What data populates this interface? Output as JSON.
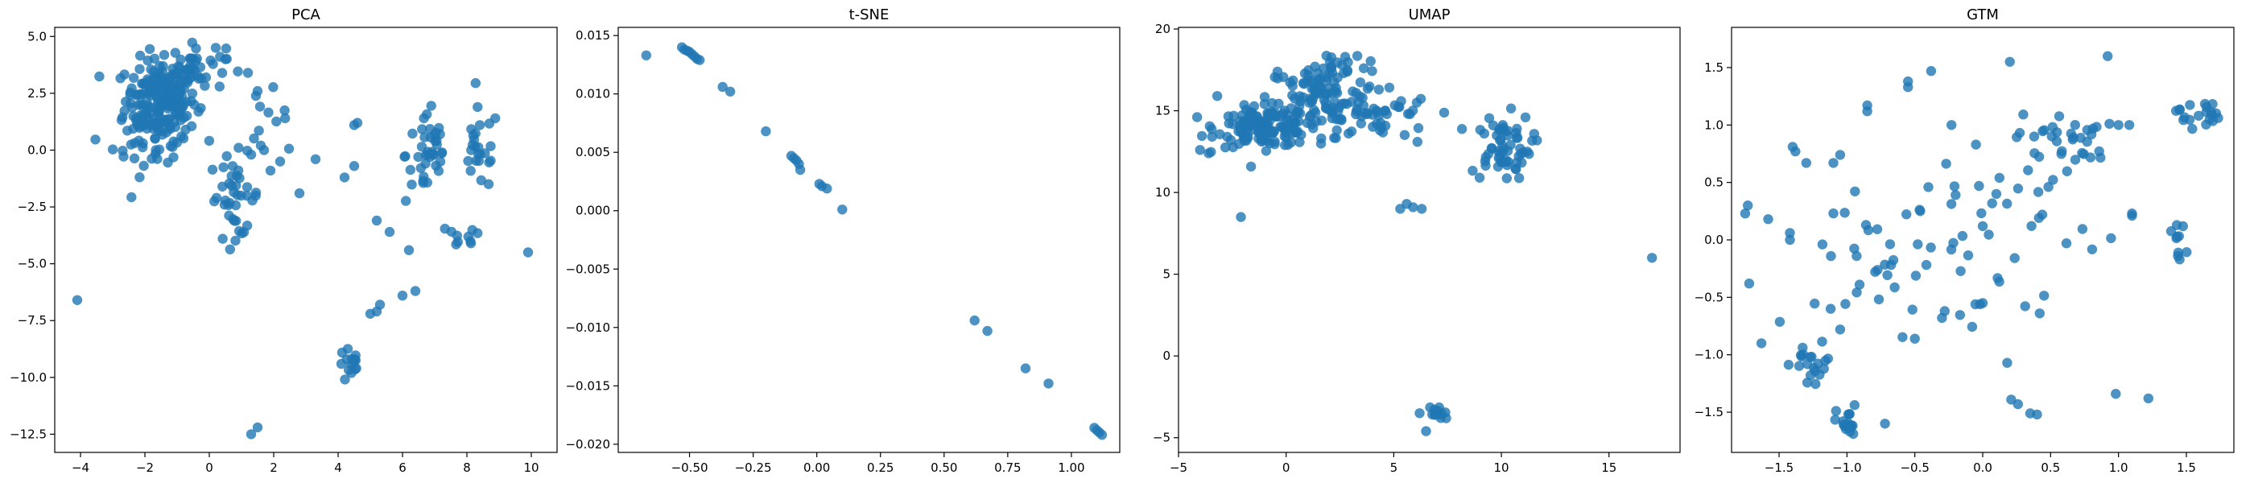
{
  "point_color": "#1f77b4",
  "point_opacity": 0.8,
  "chart_data": [
    {
      "type": "scatter",
      "title": "PCA",
      "xlim": [
        -4.8,
        10.8
      ],
      "ylim": [
        -13.3,
        5.4
      ],
      "xticks": [
        -4,
        -2,
        0,
        2,
        4,
        6,
        8,
        10
      ],
      "xtick_labels": [
        "−4",
        "−2",
        "0",
        "2",
        "4",
        "6",
        "8",
        "10"
      ],
      "yticks": [
        -12.5,
        -10,
        -7.5,
        -5,
        -2.5,
        0,
        2.5,
        5
      ],
      "ytick_labels": [
        "−12.5",
        "−10.0",
        "−7.5",
        "−5.0",
        "−2.5",
        "0.0",
        "2.5",
        "5.0"
      ],
      "clusters": [
        {
          "cx": -1.5,
          "cy": 2.2,
          "sx": 0.55,
          "sy": 0.9,
          "n": 200
        },
        {
          "cx": -0.5,
          "cy": 3.6,
          "sx": 0.5,
          "sy": 0.5,
          "n": 40
        },
        {
          "cx": -1.8,
          "cy": 0.3,
          "sx": 0.6,
          "sy": 0.7,
          "n": 30
        },
        {
          "cx": 0.8,
          "cy": -2.0,
          "sx": 0.4,
          "sy": 0.9,
          "n": 40
        },
        {
          "cx": 1.8,
          "cy": 1.6,
          "sx": 0.3,
          "sy": 0.6,
          "n": 10
        },
        {
          "cx": 6.8,
          "cy": -0.2,
          "sx": 0.35,
          "sy": 1.1,
          "n": 40
        },
        {
          "cx": 8.4,
          "cy": 0.0,
          "sx": 0.3,
          "sy": 0.9,
          "n": 25
        },
        {
          "cx": 7.7,
          "cy": -3.9,
          "sx": 0.4,
          "sy": 0.3,
          "n": 10
        },
        {
          "cx": 4.4,
          "cy": -9.5,
          "sx": 0.2,
          "sy": 0.4,
          "n": 15
        }
      ],
      "points": [
        [
          -4.1,
          -6.6
        ],
        [
          1.3,
          -12.5
        ],
        [
          1.5,
          -12.2
        ],
        [
          4.6,
          1.2
        ],
        [
          4.5,
          1.1
        ],
        [
          4.2,
          -1.2
        ],
        [
          4.5,
          -0.7
        ],
        [
          2.8,
          -1.9
        ],
        [
          3.3,
          -0.4
        ],
        [
          5.2,
          -3.1
        ],
        [
          5.6,
          -3.6
        ],
        [
          6.2,
          -4.4
        ],
        [
          5.0,
          -7.2
        ],
        [
          5.3,
          -6.8
        ],
        [
          5.2,
          -7.1
        ],
        [
          6.0,
          -6.4
        ],
        [
          6.4,
          -6.2
        ],
        [
          9.9,
          -4.5
        ],
        [
          2.2,
          -0.5
        ],
        [
          1.6,
          0.2
        ],
        [
          1.3,
          -0.2
        ],
        [
          1.5,
          2.6
        ],
        [
          1.2,
          3.4
        ],
        [
          0.5,
          4.0
        ],
        [
          0.2,
          4.5
        ],
        [
          1.7,
          0.0
        ],
        [
          1.9,
          -0.9
        ]
      ]
    },
    {
      "type": "scatter",
      "title": "t-SNE",
      "xlim": [
        -0.78,
        1.19
      ],
      "ylim": [
        -0.0207,
        0.0157
      ],
      "xticks": [
        -0.5,
        -0.25,
        0.0,
        0.25,
        0.5,
        0.75,
        1.0
      ],
      "xtick_labels": [
        "−0.50",
        "−0.25",
        "0.00",
        "0.25",
        "0.50",
        "0.75",
        "1.00"
      ],
      "yticks": [
        -0.02,
        -0.015,
        -0.01,
        -0.005,
        0.0,
        0.005,
        0.01,
        0.015
      ],
      "ytick_labels": [
        "−0.020",
        "−0.015",
        "−0.010",
        "−0.005",
        "0.000",
        "0.005",
        "0.010",
        "0.015"
      ],
      "clusters": [],
      "points": [
        [
          -0.67,
          0.0133
        ],
        [
          -0.53,
          0.014
        ],
        [
          -0.52,
          0.0138
        ],
        [
          -0.51,
          0.0137
        ],
        [
          -0.5,
          0.0136
        ],
        [
          -0.49,
          0.0134
        ],
        [
          -0.48,
          0.0132
        ],
        [
          -0.47,
          0.013
        ],
        [
          -0.46,
          0.0129
        ],
        [
          -0.37,
          0.0106
        ],
        [
          -0.34,
          0.0102
        ],
        [
          -0.2,
          0.0068
        ],
        [
          -0.1,
          0.0047
        ],
        [
          -0.09,
          0.0045
        ],
        [
          -0.08,
          0.0043
        ],
        [
          -0.07,
          0.004
        ],
        [
          -0.065,
          0.0035
        ],
        [
          0.01,
          0.0023
        ],
        [
          0.02,
          0.0021
        ],
        [
          0.04,
          0.0019
        ],
        [
          0.1,
          0.0001
        ],
        [
          0.62,
          -0.0094
        ],
        [
          0.67,
          -0.0103
        ],
        [
          0.82,
          -0.0135
        ],
        [
          0.91,
          -0.0148
        ],
        [
          1.09,
          -0.0186
        ],
        [
          1.1,
          -0.0188
        ],
        [
          1.11,
          -0.019
        ],
        [
          1.12,
          -0.0192
        ]
      ]
    },
    {
      "type": "scatter",
      "title": "UMAP",
      "xlim": [
        -5.0,
        18.3
      ],
      "ylim": [
        -5.9,
        20.1
      ],
      "xticks": [
        -5,
        0,
        5,
        10,
        15
      ],
      "xtick_labels": [
        "−5",
        "0",
        "5",
        "10",
        "15"
      ],
      "yticks": [
        -5,
        0,
        5,
        10,
        15,
        20
      ],
      "ytick_labels": [
        "−5",
        "0",
        "5",
        "10",
        "15",
        "20"
      ],
      "clusters": [
        {
          "cx": -1.0,
          "cy": 14.0,
          "sx": 1.1,
          "sy": 0.6,
          "n": 140
        },
        {
          "cx": 1.5,
          "cy": 15.8,
          "sx": 1.2,
          "sy": 1.1,
          "n": 90
        },
        {
          "cx": 2.5,
          "cy": 17.8,
          "sx": 0.7,
          "sy": 0.6,
          "n": 20
        },
        {
          "cx": 4.0,
          "cy": 14.8,
          "sx": 1.4,
          "sy": 0.9,
          "n": 50
        },
        {
          "cx": 10.0,
          "cy": 12.8,
          "sx": 0.7,
          "sy": 1.0,
          "n": 60
        },
        {
          "cx": 7.0,
          "cy": -3.6,
          "sx": 0.25,
          "sy": 0.3,
          "n": 12
        }
      ],
      "points": [
        [
          -4.0,
          12.6
        ],
        [
          -3.6,
          12.4
        ],
        [
          -2.1,
          8.5
        ],
        [
          5.3,
          9.0
        ],
        [
          5.6,
          9.3
        ],
        [
          5.9,
          9.1
        ],
        [
          6.3,
          9.0
        ],
        [
          17.0,
          6.0
        ],
        [
          6.1,
          13.1
        ],
        [
          11.2,
          12.5
        ],
        [
          -3.2,
          15.9
        ],
        [
          6.5,
          -4.6
        ],
        [
          6.2,
          -3.5
        ]
      ]
    },
    {
      "type": "scatter",
      "title": "GTM",
      "xlim": [
        -1.85,
        1.85
      ],
      "ylim": [
        -1.85,
        1.85
      ],
      "xticks": [
        -1.5,
        -1.0,
        -0.5,
        0.0,
        0.5,
        1.0,
        1.5
      ],
      "xtick_labels": [
        "−1.5",
        "−1.0",
        "−0.5",
        "0.0",
        "0.5",
        "1.0",
        "1.5"
      ],
      "yticks": [
        -1.5,
        -1.0,
        -0.5,
        0.0,
        0.5,
        1.0,
        1.5
      ],
      "ytick_labels": [
        "−1.5",
        "−1.0",
        "−0.5",
        "0.0",
        "0.5",
        "1.0",
        "1.5"
      ],
      "clusters": [
        {
          "cx": 0.6,
          "cy": 0.9,
          "sx": 0.18,
          "sy": 0.1,
          "n": 30
        },
        {
          "cx": 1.58,
          "cy": 1.1,
          "sx": 0.08,
          "sy": 0.06,
          "n": 20
        },
        {
          "cx": -1.0,
          "cy": -1.6,
          "sx": 0.04,
          "sy": 0.08,
          "n": 20
        },
        {
          "cx": -1.25,
          "cy": -1.1,
          "sx": 0.08,
          "sy": 0.1,
          "n": 20
        },
        {
          "cx": 1.45,
          "cy": -0.1,
          "sx": 0.03,
          "sy": 0.12,
          "n": 10
        },
        {
          "cx": -0.6,
          "cy": -0.2,
          "sx": 0.4,
          "sy": 0.4,
          "n": 40
        },
        {
          "cx": 0.3,
          "cy": 0.3,
          "sx": 0.3,
          "sy": 0.3,
          "n": 30
        }
      ],
      "points": [
        [
          -1.75,
          0.23
        ],
        [
          -1.72,
          -0.38
        ],
        [
          -1.73,
          0.3
        ],
        [
          -1.58,
          0.18
        ],
        [
          -1.42,
          0.06
        ],
        [
          -1.42,
          0.0
        ],
        [
          -1.63,
          -0.9
        ],
        [
          -1.4,
          0.81
        ],
        [
          -1.38,
          0.77
        ],
        [
          -1.3,
          0.67
        ],
        [
          -1.1,
          0.67
        ],
        [
          -1.05,
          0.74
        ],
        [
          -0.85,
          1.17
        ],
        [
          -0.85,
          1.12
        ],
        [
          -0.55,
          1.38
        ],
        [
          -0.55,
          1.33
        ],
        [
          -0.38,
          1.47
        ],
        [
          -0.23,
          1.0
        ],
        [
          -0.2,
          0.39
        ],
        [
          -0.05,
          0.83
        ],
        [
          0.2,
          1.55
        ],
        [
          0.92,
          1.6
        ],
        [
          1.08,
          1.0
        ],
        [
          1.1,
          0.23
        ],
        [
          1.1,
          0.21
        ],
        [
          0.98,
          -1.34
        ],
        [
          1.22,
          -1.38
        ],
        [
          0.18,
          -1.07
        ],
        [
          0.21,
          -1.39
        ],
        [
          0.26,
          -1.43
        ],
        [
          0.35,
          -1.51
        ],
        [
          0.4,
          -1.52
        ],
        [
          -0.02,
          -0.56
        ],
        [
          0.0,
          -0.55
        ],
        [
          0.42,
          -0.64
        ],
        [
          -0.28,
          -0.62
        ],
        [
          -0.3,
          -0.68
        ],
        [
          -0.5,
          -0.86
        ],
        [
          -0.72,
          -1.6
        ],
        [
          -1.12,
          -0.6
        ],
        [
          -1.05,
          -0.78
        ],
        [
          -0.4,
          0.46
        ],
        [
          -0.46,
          0.25
        ],
        [
          0.0,
          0.12
        ],
        [
          0.1,
          0.4
        ]
      ]
    }
  ]
}
